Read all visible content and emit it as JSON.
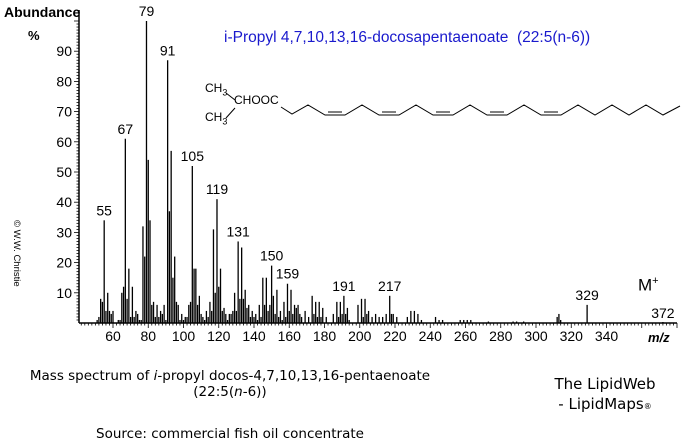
{
  "chart_data": {
    "type": "bar",
    "title": "i-Propyl 4,7,10,13,16-docosapentaenoate  (22:5(n-6))",
    "xlabel": "m/z",
    "ylabel": "Abundance",
    "ylabel_unit": "%",
    "xlim": [
      40,
      380
    ],
    "ylim": [
      0,
      100
    ],
    "x_ticks": [
      60,
      80,
      100,
      120,
      140,
      160,
      180,
      200,
      220,
      240,
      260,
      280,
      300,
      320,
      340
    ],
    "y_ticks": [
      10,
      20,
      30,
      40,
      50,
      60,
      70,
      80,
      90
    ],
    "peak_labels": [
      55,
      67,
      79,
      91,
      105,
      119,
      131,
      150,
      159,
      191,
      217,
      329,
      372
    ],
    "molecular_ion_label": "M+",
    "peaks": [
      {
        "mz": 51,
        "value": 1
      },
      {
        "mz": 52,
        "value": 2
      },
      {
        "mz": 53,
        "value": 8
      },
      {
        "mz": 54,
        "value": 7
      },
      {
        "mz": 55,
        "value": 34
      },
      {
        "mz": 56,
        "value": 4
      },
      {
        "mz": 57,
        "value": 10
      },
      {
        "mz": 58,
        "value": 4
      },
      {
        "mz": 59,
        "value": 3
      },
      {
        "mz": 60,
        "value": 4
      },
      {
        "mz": 63,
        "value": 1
      },
      {
        "mz": 64,
        "value": 1
      },
      {
        "mz": 65,
        "value": 10
      },
      {
        "mz": 66,
        "value": 12
      },
      {
        "mz": 67,
        "value": 61
      },
      {
        "mz": 68,
        "value": 8
      },
      {
        "mz": 69,
        "value": 18
      },
      {
        "mz": 70,
        "value": 2
      },
      {
        "mz": 71,
        "value": 12
      },
      {
        "mz": 72,
        "value": 2
      },
      {
        "mz": 73,
        "value": 4
      },
      {
        "mz": 74,
        "value": 3
      },
      {
        "mz": 75,
        "value": 1
      },
      {
        "mz": 76,
        "value": 1
      },
      {
        "mz": 77,
        "value": 32
      },
      {
        "mz": 78,
        "value": 22
      },
      {
        "mz": 79,
        "value": 100
      },
      {
        "mz": 80,
        "value": 54
      },
      {
        "mz": 81,
        "value": 34
      },
      {
        "mz": 82,
        "value": 6
      },
      {
        "mz": 83,
        "value": 7
      },
      {
        "mz": 84,
        "value": 2
      },
      {
        "mz": 85,
        "value": 6
      },
      {
        "mz": 86,
        "value": 2
      },
      {
        "mz": 87,
        "value": 4
      },
      {
        "mz": 88,
        "value": 3
      },
      {
        "mz": 89,
        "value": 6
      },
      {
        "mz": 90,
        "value": 1
      },
      {
        "mz": 91,
        "value": 87
      },
      {
        "mz": 92,
        "value": 37
      },
      {
        "mz": 93,
        "value": 57
      },
      {
        "mz": 94,
        "value": 15
      },
      {
        "mz": 95,
        "value": 22
      },
      {
        "mz": 96,
        "value": 7
      },
      {
        "mz": 97,
        "value": 6
      },
      {
        "mz": 98,
        "value": 1
      },
      {
        "mz": 99,
        "value": 3
      },
      {
        "mz": 100,
        "value": 1
      },
      {
        "mz": 101,
        "value": 2
      },
      {
        "mz": 102,
        "value": 2
      },
      {
        "mz": 103,
        "value": 6
      },
      {
        "mz": 104,
        "value": 7
      },
      {
        "mz": 105,
        "value": 52
      },
      {
        "mz": 106,
        "value": 18
      },
      {
        "mz": 107,
        "value": 18
      },
      {
        "mz": 108,
        "value": 6
      },
      {
        "mz": 109,
        "value": 9
      },
      {
        "mz": 110,
        "value": 3
      },
      {
        "mz": 111,
        "value": 2
      },
      {
        "mz": 112,
        "value": 1
      },
      {
        "mz": 113,
        "value": 4
      },
      {
        "mz": 114,
        "value": 2
      },
      {
        "mz": 115,
        "value": 7
      },
      {
        "mz": 116,
        "value": 4
      },
      {
        "mz": 117,
        "value": 31
      },
      {
        "mz": 118,
        "value": 10
      },
      {
        "mz": 119,
        "value": 41
      },
      {
        "mz": 120,
        "value": 12
      },
      {
        "mz": 121,
        "value": 18
      },
      {
        "mz": 122,
        "value": 4
      },
      {
        "mz": 123,
        "value": 5
      },
      {
        "mz": 124,
        "value": 3
      },
      {
        "mz": 125,
        "value": 1
      },
      {
        "mz": 126,
        "value": 3
      },
      {
        "mz": 127,
        "value": 3
      },
      {
        "mz": 128,
        "value": 4
      },
      {
        "mz": 129,
        "value": 10
      },
      {
        "mz": 130,
        "value": 4
      },
      {
        "mz": 131,
        "value": 27
      },
      {
        "mz": 132,
        "value": 8
      },
      {
        "mz": 133,
        "value": 25
      },
      {
        "mz": 134,
        "value": 8
      },
      {
        "mz": 135,
        "value": 11
      },
      {
        "mz": 136,
        "value": 5
      },
      {
        "mz": 137,
        "value": 6
      },
      {
        "mz": 138,
        "value": 2
      },
      {
        "mz": 139,
        "value": 4
      },
      {
        "mz": 140,
        "value": 2
      },
      {
        "mz": 141,
        "value": 3
      },
      {
        "mz": 142,
        "value": 1
      },
      {
        "mz": 143,
        "value": 6
      },
      {
        "mz": 144,
        "value": 2
      },
      {
        "mz": 145,
        "value": 15
      },
      {
        "mz": 146,
        "value": 6
      },
      {
        "mz": 147,
        "value": 15
      },
      {
        "mz": 148,
        "value": 4
      },
      {
        "mz": 149,
        "value": 6
      },
      {
        "mz": 150,
        "value": 19
      },
      {
        "mz": 151,
        "value": 9
      },
      {
        "mz": 152,
        "value": 3
      },
      {
        "mz": 153,
        "value": 11
      },
      {
        "mz": 154,
        "value": 2
      },
      {
        "mz": 155,
        "value": 4
      },
      {
        "mz": 156,
        "value": 1
      },
      {
        "mz": 157,
        "value": 7
      },
      {
        "mz": 158,
        "value": 2
      },
      {
        "mz": 159,
        "value": 13
      },
      {
        "mz": 160,
        "value": 4
      },
      {
        "mz": 161,
        "value": 11
      },
      {
        "mz": 162,
        "value": 3
      },
      {
        "mz": 163,
        "value": 6
      },
      {
        "mz": 164,
        "value": 5
      },
      {
        "mz": 165,
        "value": 6
      },
      {
        "mz": 166,
        "value": 3
      },
      {
        "mz": 167,
        "value": 2
      },
      {
        "mz": 169,
        "value": 4
      },
      {
        "mz": 171,
        "value": 2
      },
      {
        "mz": 173,
        "value": 9
      },
      {
        "mz": 174,
        "value": 3
      },
      {
        "mz": 175,
        "value": 7
      },
      {
        "mz": 176,
        "value": 2
      },
      {
        "mz": 177,
        "value": 7
      },
      {
        "mz": 178,
        "value": 2
      },
      {
        "mz": 179,
        "value": 5
      },
      {
        "mz": 181,
        "value": 2
      },
      {
        "mz": 185,
        "value": 3
      },
      {
        "mz": 187,
        "value": 7
      },
      {
        "mz": 188,
        "value": 2
      },
      {
        "mz": 189,
        "value": 7
      },
      {
        "mz": 190,
        "value": 3
      },
      {
        "mz": 191,
        "value": 9
      },
      {
        "mz": 192,
        "value": 3
      },
      {
        "mz": 193,
        "value": 5
      },
      {
        "mz": 194,
        "value": 1
      },
      {
        "mz": 199,
        "value": 6
      },
      {
        "mz": 201,
        "value": 8
      },
      {
        "mz": 202,
        "value": 2
      },
      {
        "mz": 203,
        "value": 8
      },
      {
        "mz": 204,
        "value": 3
      },
      {
        "mz": 205,
        "value": 4
      },
      {
        "mz": 207,
        "value": 2
      },
      {
        "mz": 209,
        "value": 3
      },
      {
        "mz": 211,
        "value": 2
      },
      {
        "mz": 213,
        "value": 2
      },
      {
        "mz": 215,
        "value": 3
      },
      {
        "mz": 217,
        "value": 9
      },
      {
        "mz": 218,
        "value": 3
      },
      {
        "mz": 219,
        "value": 3
      },
      {
        "mz": 221,
        "value": 2
      },
      {
        "mz": 227,
        "value": 2
      },
      {
        "mz": 229,
        "value": 4
      },
      {
        "mz": 231,
        "value": 4
      },
      {
        "mz": 233,
        "value": 3
      },
      {
        "mz": 235,
        "value": 1
      },
      {
        "mz": 243,
        "value": 2
      },
      {
        "mz": 245,
        "value": 1
      },
      {
        "mz": 247,
        "value": 1
      },
      {
        "mz": 257,
        "value": 1
      },
      {
        "mz": 259,
        "value": 1
      },
      {
        "mz": 261,
        "value": 1
      },
      {
        "mz": 263,
        "value": 1
      },
      {
        "mz": 273,
        "value": 0.5
      },
      {
        "mz": 287,
        "value": 0.5
      },
      {
        "mz": 289,
        "value": 0.5
      },
      {
        "mz": 293,
        "value": 0.5
      },
      {
        "mz": 312,
        "value": 2
      },
      {
        "mz": 313,
        "value": 3
      },
      {
        "mz": 314,
        "value": 1
      },
      {
        "mz": 329,
        "value": 6
      },
      {
        "mz": 372,
        "value": 0.3
      }
    ]
  },
  "axis": {
    "y_title": "Abundance",
    "y_unit": "%",
    "x_title": "m/z",
    "molecular_ion": "M",
    "molecular_ion_sup": "+"
  },
  "title": "i-Propyl 4,7,10,13,16-docosapentaenoate  (22:5(n-6))",
  "structure": {
    "ch3_top": "CH",
    "ch3_bottom": "CH",
    "sub3": "3",
    "ester": "CHOOC"
  },
  "copyright": "© W.W. Christie",
  "caption": {
    "line1_prefix": "Mass spectrum of ",
    "line1_italic": "i",
    "line1_suffix": "-propyl docos-4,7,10,13,16-pentaenoate",
    "line2_prefix": "(22:5(",
    "line2_italic": "n",
    "line2_suffix": "-6))",
    "source": "Source: commercial fish oil concentrate"
  },
  "credit": {
    "line1": "The LipidWeb",
    "line2": "- LipidMaps",
    "reg": "®"
  }
}
